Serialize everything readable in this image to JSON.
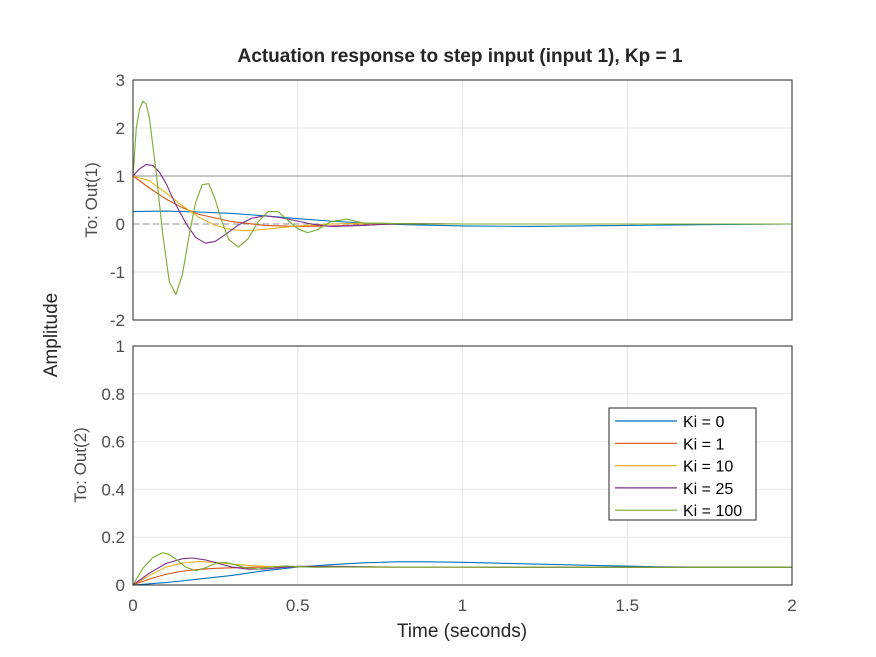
{
  "chart_data": {
    "type": "line",
    "title": "Actuation response to step input (input 1), Kp = 1",
    "xlabel": "Time (seconds)",
    "ylabel": "Amplitude",
    "xlim": [
      0,
      2
    ],
    "x_ticks": [
      "0",
      "0.5",
      "1",
      "1.5",
      "2"
    ],
    "grid": true,
    "legend_placement": "right-inside-bottom-axes",
    "legend": [
      "Ki = 0",
      "Ki = 1",
      "Ki = 10",
      "Ki = 25",
      "Ki = 100"
    ],
    "colors": [
      "#0072BD",
      "#D95319",
      "#EDB120",
      "#7E2F8E",
      "#77AC30"
    ],
    "subplots": [
      {
        "ylabel": "To: Out(1)",
        "ylim": [
          -2,
          3
        ],
        "y_ticks": [
          "-2",
          "-1",
          "0",
          "1",
          "2",
          "3"
        ],
        "reference_lines": [
          1,
          0
        ],
        "series": [
          {
            "name": "Ki = 0",
            "x": [
              0,
              0.1,
              0.2,
              0.3,
              0.4,
              0.5,
              0.6,
              0.7,
              0.8,
              1.0,
              1.2,
              1.5,
              1.8,
              2.0
            ],
            "y": [
              0.26,
              0.27,
              0.25,
              0.22,
              0.17,
              0.11,
              0.06,
              0.02,
              -0.01,
              -0.04,
              -0.05,
              -0.03,
              -0.01,
              0
            ]
          },
          {
            "name": "Ki = 1",
            "x": [
              0,
              0.05,
              0.1,
              0.15,
              0.2,
              0.3,
              0.4,
              0.5,
              0.6,
              0.7,
              0.8,
              1.0,
              1.5,
              2.0
            ],
            "y": [
              1.0,
              0.75,
              0.52,
              0.34,
              0.2,
              0.05,
              -0.03,
              -0.05,
              -0.04,
              -0.02,
              0,
              0,
              0,
              0
            ]
          },
          {
            "name": "Ki = 10",
            "x": [
              0,
              0.05,
              0.1,
              0.15,
              0.2,
              0.25,
              0.3,
              0.35,
              0.4,
              0.5,
              0.6,
              0.7,
              0.8,
              1.0,
              1.5,
              2.0
            ],
            "y": [
              1.0,
              0.9,
              0.65,
              0.38,
              0.14,
              -0.03,
              -0.12,
              -0.14,
              -0.11,
              -0.04,
              0,
              0.02,
              0.01,
              0,
              0,
              0
            ]
          },
          {
            "name": "Ki = 25",
            "x": [
              0,
              0.02,
              0.04,
              0.06,
              0.08,
              0.1,
              0.13,
              0.16,
              0.19,
              0.22,
              0.25,
              0.28,
              0.32,
              0.36,
              0.4,
              0.45,
              0.5,
              0.55,
              0.6,
              0.7,
              0.8,
              1.0,
              1.5,
              2.0
            ],
            "y": [
              1.0,
              1.15,
              1.24,
              1.22,
              1.08,
              0.85,
              0.4,
              0.02,
              -0.28,
              -0.4,
              -0.36,
              -0.22,
              -0.02,
              0.12,
              0.17,
              0.13,
              0.06,
              -0.01,
              -0.05,
              -0.03,
              0.01,
              0,
              0,
              0
            ]
          },
          {
            "name": "Ki = 100",
            "x": [
              0,
              0.01,
              0.02,
              0.03,
              0.04,
              0.05,
              0.07,
              0.09,
              0.11,
              0.13,
              0.15,
              0.17,
              0.19,
              0.21,
              0.23,
              0.25,
              0.27,
              0.29,
              0.32,
              0.35,
              0.38,
              0.41,
              0.44,
              0.47,
              0.5,
              0.53,
              0.56,
              0.6,
              0.65,
              0.7,
              0.8,
              0.9,
              1.0,
              1.5,
              2.0
            ],
            "y": [
              1.0,
              2.0,
              2.4,
              2.56,
              2.5,
              2.2,
              1.1,
              -0.2,
              -1.2,
              -1.47,
              -1.05,
              -0.25,
              0.45,
              0.82,
              0.84,
              0.5,
              0.05,
              -0.32,
              -0.48,
              -0.3,
              0.05,
              0.26,
              0.26,
              0.08,
              -0.1,
              -0.18,
              -0.12,
              0.05,
              0.1,
              0.02,
              0.01,
              0,
              0,
              0,
              0
            ]
          }
        ]
      },
      {
        "ylabel": "To: Out(2)",
        "ylim": [
          0,
          1
        ],
        "y_ticks": [
          "0",
          "0.2",
          "0.4",
          "0.6",
          "0.8",
          "1"
        ],
        "series": [
          {
            "name": "Ki = 0",
            "x": [
              0,
              0.1,
              0.2,
              0.3,
              0.4,
              0.5,
              0.6,
              0.7,
              0.8,
              0.9,
              1.0,
              1.2,
              1.4,
              1.6,
              1.8,
              2.0
            ],
            "y": [
              0,
              0.01,
              0.025,
              0.04,
              0.06,
              0.075,
              0.085,
              0.093,
              0.097,
              0.097,
              0.095,
              0.088,
              0.082,
              0.076,
              0.074,
              0.074
            ]
          },
          {
            "name": "Ki = 1",
            "x": [
              0,
              0.05,
              0.1,
              0.15,
              0.2,
              0.25,
              0.3,
              0.4,
              0.5,
              0.6,
              0.8,
              1.0,
              1.5,
              2.0
            ],
            "y": [
              0,
              0.025,
              0.045,
              0.058,
              0.065,
              0.07,
              0.072,
              0.075,
              0.076,
              0.076,
              0.075,
              0.075,
              0.074,
              0.074
            ]
          },
          {
            "name": "Ki = 10",
            "x": [
              0,
              0.05,
              0.1,
              0.15,
              0.2,
              0.25,
              0.3,
              0.35,
              0.4,
              0.5,
              0.6,
              0.8,
              1.0,
              1.5,
              2.0
            ],
            "y": [
              0,
              0.04,
              0.075,
              0.092,
              0.098,
              0.095,
              0.088,
              0.082,
              0.078,
              0.076,
              0.076,
              0.075,
              0.075,
              0.074,
              0.074
            ]
          },
          {
            "name": "Ki = 25",
            "x": [
              0,
              0.05,
              0.1,
              0.15,
              0.18,
              0.22,
              0.26,
              0.3,
              0.35,
              0.4,
              0.45,
              0.5,
              0.6,
              0.8,
              1.0,
              1.5,
              2.0
            ],
            "y": [
              0,
              0.05,
              0.09,
              0.11,
              0.113,
              0.105,
              0.09,
              0.075,
              0.066,
              0.067,
              0.073,
              0.078,
              0.078,
              0.075,
              0.075,
              0.074,
              0.074
            ]
          },
          {
            "name": "Ki = 100",
            "x": [
              0,
              0.03,
              0.06,
              0.09,
              0.11,
              0.13,
              0.16,
              0.19,
              0.22,
              0.25,
              0.28,
              0.31,
              0.34,
              0.38,
              0.42,
              0.46,
              0.5,
              0.55,
              0.6,
              0.8,
              1.0,
              1.5,
              2.0
            ],
            "y": [
              0,
              0.07,
              0.115,
              0.135,
              0.128,
              0.108,
              0.075,
              0.06,
              0.072,
              0.09,
              0.095,
              0.085,
              0.072,
              0.067,
              0.075,
              0.08,
              0.077,
              0.074,
              0.075,
              0.075,
              0.075,
              0.074,
              0.074
            ]
          }
        ]
      }
    ]
  }
}
